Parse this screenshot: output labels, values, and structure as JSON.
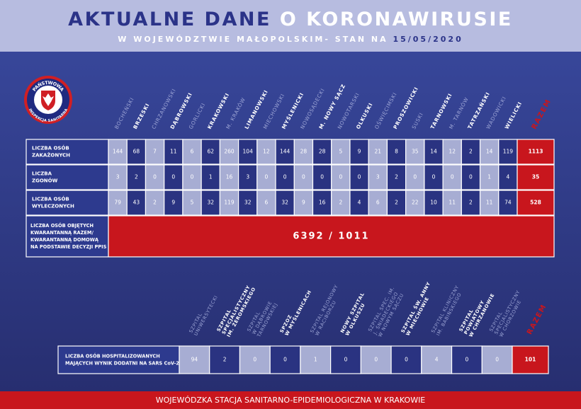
{
  "header": {
    "title": [
      "AKTUALNE DANE",
      "O KORONAWIRUSIE"
    ],
    "subtitle": [
      "W WOJEWÓDZTWIE MAŁOPOLSKIM- STAN NA",
      "15/05/2020"
    ]
  },
  "logo": {
    "top": "PAŃSTWOWA",
    "bottom": "INSPEKCJA SANITARNA"
  },
  "districts": {
    "columns": [
      "BOCHEŃSKI",
      "BRZESKI",
      "CHRZANOWSKI",
      "DĄBROWSKI",
      "GORLICKI",
      "KRAKOWSKI",
      "M. KRAKÓW",
      "LIMANOWSKI",
      "MIECHOWSKI",
      "MYŚLENICKI",
      "NOWOSĄDECKI",
      "M. NOWY SĄCZ",
      "NOWOTARSKI",
      "OLKUSKI",
      "OŚWIĘCIMSKI",
      "PROSZOWICKI",
      "SUSKI",
      "TARNOWSKI",
      "M. TARNÓW",
      "TATRZAŃSKI",
      "WADOWICKI",
      "WIELICKI"
    ],
    "total_label": "RAZEM",
    "rows": [
      {
        "label": [
          "LICZBA OSÓB",
          "ZAKAŻONYCH"
        ],
        "values": [
          144,
          68,
          7,
          11,
          6,
          62,
          260,
          104,
          12,
          144,
          28,
          28,
          5,
          9,
          21,
          8,
          35,
          14,
          12,
          2,
          14,
          119
        ],
        "total": 1113
      },
      {
        "label": [
          "LICZBA",
          "ZGONÓW"
        ],
        "values": [
          3,
          2,
          0,
          0,
          0,
          1,
          16,
          3,
          0,
          0,
          0,
          0,
          0,
          0,
          3,
          2,
          0,
          0,
          0,
          0,
          1,
          4
        ],
        "total": 35
      },
      {
        "label": [
          "LICZBA OSÓB",
          "WYLECZONYCH"
        ],
        "values": [
          79,
          43,
          2,
          9,
          5,
          32,
          119,
          32,
          6,
          32,
          9,
          16,
          2,
          4,
          6,
          2,
          22,
          10,
          11,
          2,
          11,
          74
        ],
        "total": 528
      }
    ],
    "quarantine": {
      "label": [
        "LICZBA OSÓB OBJĘTYCH",
        "KWARANTANNĄ RAZEM/",
        "KWARANTANNĄ DOMOWĄ",
        "NA PODSTAWIE DECYZJI PPIS"
      ],
      "value": "6392 / 1011"
    }
  },
  "hospitals": {
    "columns": [
      [
        "SZPITAL",
        "UNIWERSYTECKI"
      ],
      [
        "SZPITAL",
        "SPECJALISTYCZNY",
        "IM. ŻEROMSKIEGO"
      ],
      [
        "SZPITAL",
        "W DĄBROWIE",
        "TARNOWSKIEJ"
      ],
      [
        "SPZOZ",
        "W MYŚLENICACH"
      ],
      [
        "SZPITAL REJONOWY",
        "W RACIBORZU"
      ],
      [
        "NOWY SZPITAL",
        "W OLKUSZU"
      ],
      [
        "SZPITAL SPEC. IM.",
        "J. ŚNIADECKIEGO",
        "W NOWYM SĄCZU"
      ],
      [
        "SZPITAL ŚW. ANNY",
        "W MIECHOWIE"
      ],
      [
        "SZPITAL KLINICZNY",
        "IM. BABIŃSKIEGO"
      ],
      [
        "SZPITAL",
        "POWIATOWY",
        "W CHRZANOWIE"
      ],
      [
        "SZPITAL",
        "SPECJALISTYCZNY",
        "W CHORZOWIE"
      ]
    ],
    "total_label": "RAZEM",
    "row": {
      "label": [
        "LICZBA OSÓB HOSPITALIZOWANYCH",
        "MAJĄCYCH WYNIK DODATNI NA SARS CoV-2"
      ],
      "values": [
        94,
        2,
        0,
        0,
        1,
        0,
        0,
        0,
        4,
        0,
        0
      ],
      "total": 101
    }
  },
  "footer": "WOJEWÓDZKA STACJA SANITARNO-EPIDEMIOLOGICZNA W KRAKOWIE"
}
